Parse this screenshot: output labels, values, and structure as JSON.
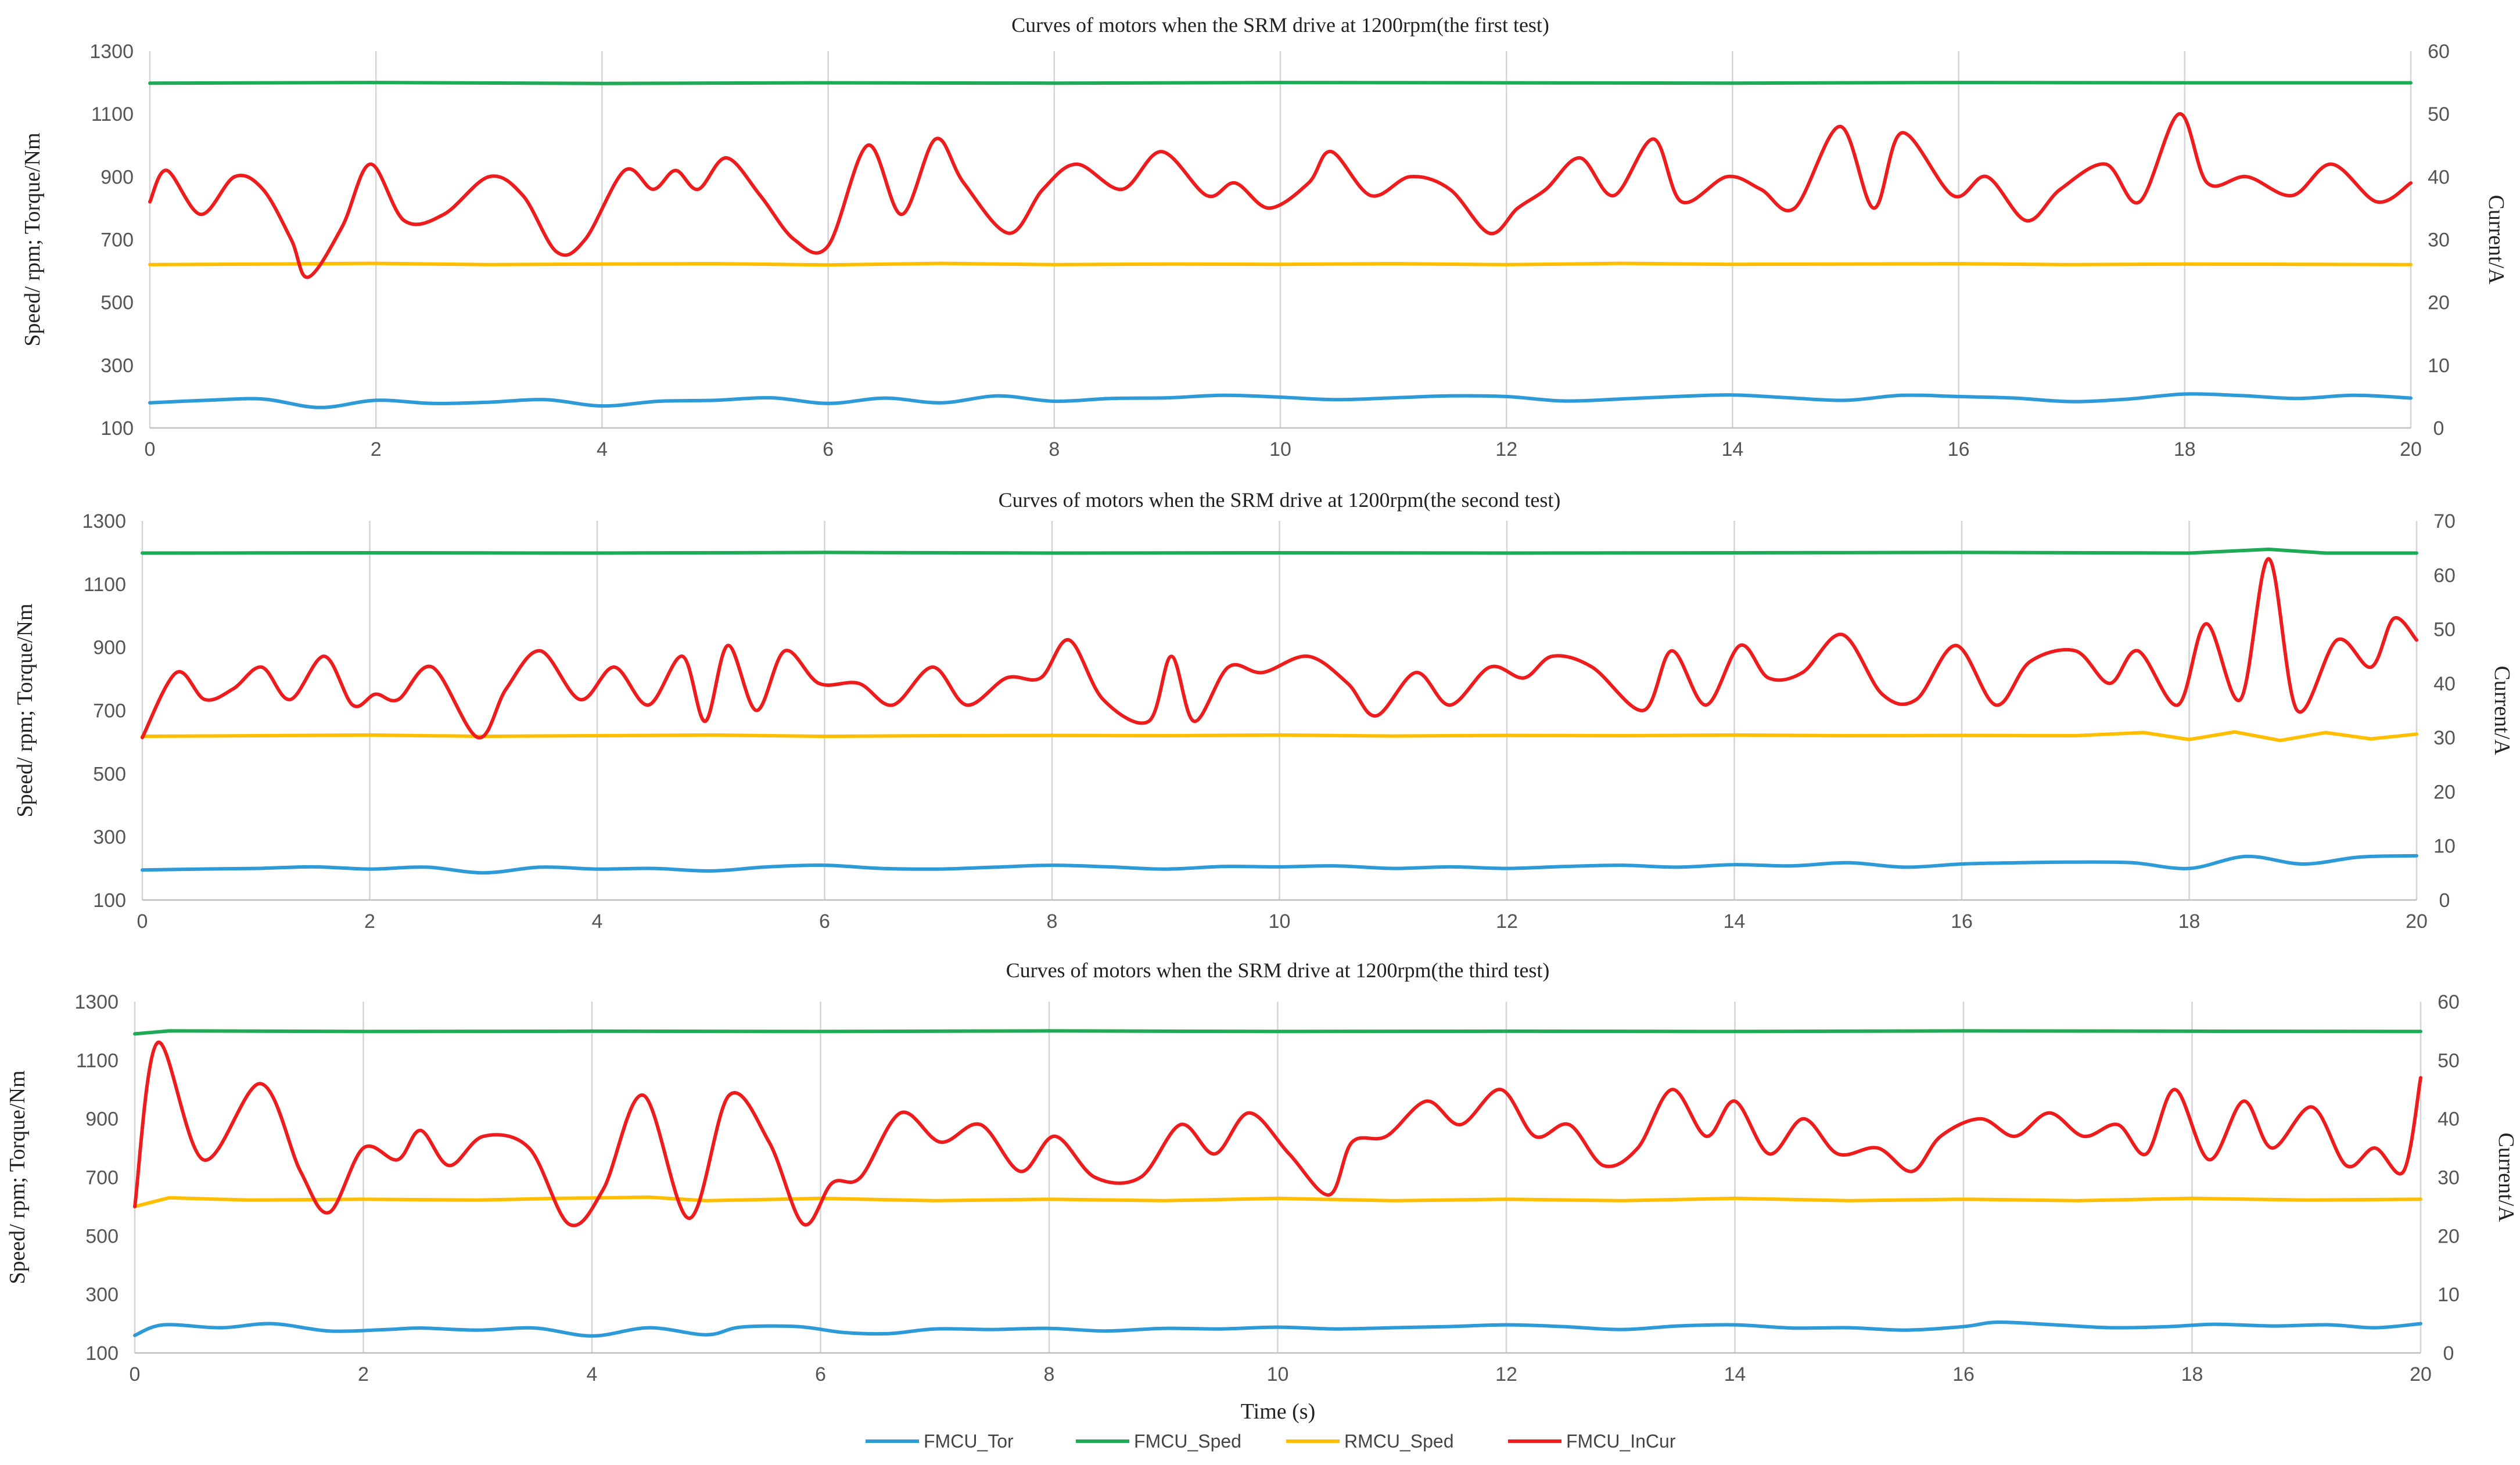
{
  "figure": {
    "xlabel": "Time (s)",
    "legend_position": "bottom"
  },
  "legend": [
    {
      "name": "FMCU_Tor",
      "color": "#2e9bd8"
    },
    {
      "name": "FMCU_Sped",
      "color": "#1faa55"
    },
    {
      "name": "RMCU_Sped",
      "color": "#ffbf00"
    },
    {
      "name": "FMCU_InCur",
      "color": "#ee1c1c"
    }
  ],
  "chart_data": [
    {
      "type": "line",
      "title": "Curves of motors when the SRM drive at 1200rpm(the first test)",
      "ylabel": "Speed/ rpm; Torque/Nm",
      "y2label": "Current/A",
      "xlim": [
        0,
        20
      ],
      "ylim": [
        100,
        1300
      ],
      "y2lim": [
        0,
        60
      ],
      "xticks": [
        "0",
        "2",
        "4",
        "6",
        "8",
        "10",
        "12",
        "14",
        "16",
        "18",
        "20"
      ],
      "yticks": [
        "100",
        "300",
        "500",
        "700",
        "900",
        "1100",
        "1300"
      ],
      "y2ticks": [
        "0",
        "10",
        "20",
        "30",
        "40",
        "50",
        "60"
      ],
      "grid": "vertical",
      "series": [
        {
          "name": "FMCU_Tor",
          "axis": "left",
          "color": "#2e9bd8",
          "x": [
            0,
            0.5,
            1,
            1.5,
            2,
            2.5,
            3,
            3.5,
            4,
            4.5,
            5,
            5.5,
            6,
            6.5,
            7,
            7.5,
            8,
            8.5,
            9,
            9.5,
            10,
            10.5,
            11,
            11.5,
            12,
            12.5,
            13,
            13.5,
            14,
            14.5,
            15,
            15.5,
            16,
            16.5,
            17,
            17.5,
            18,
            18.5,
            19,
            19.5,
            20
          ],
          "y": [
            180,
            188,
            192,
            165,
            188,
            178,
            182,
            190,
            170,
            185,
            188,
            196,
            178,
            195,
            180,
            202,
            185,
            194,
            196,
            204,
            198,
            190,
            196,
            202,
            200,
            186,
            192,
            200,
            205,
            196,
            188,
            204,
            200,
            195,
            184,
            192,
            208,
            203,
            194,
            204,
            195
          ]
        },
        {
          "name": "FMCU_Sped",
          "axis": "left",
          "color": "#1faa55",
          "x": [
            0,
            2,
            4,
            6,
            8,
            10,
            12,
            14,
            16,
            18,
            20
          ],
          "y": [
            1198,
            1200,
            1197,
            1199,
            1198,
            1200,
            1199,
            1198,
            1200,
            1199,
            1199
          ]
        },
        {
          "name": "RMCU_Sped",
          "axis": "left",
          "color": "#ffbf00",
          "x": [
            0,
            1,
            2,
            3,
            4,
            5,
            6,
            7,
            8,
            9,
            10,
            11,
            12,
            13,
            14,
            15,
            16,
            17,
            18,
            19,
            20
          ],
          "y": [
            620,
            622,
            624,
            620,
            622,
            623,
            619,
            624,
            620,
            622,
            621,
            623,
            620,
            624,
            621,
            622,
            623,
            620,
            622,
            621,
            620
          ]
        },
        {
          "name": "FMCU_InCur",
          "axis": "right",
          "color": "#ee1c1c",
          "x": [
            0,
            0.15,
            0.45,
            0.75,
            1,
            1.25,
            1.4,
            1.7,
            1.95,
            2.25,
            2.6,
            3,
            3.3,
            3.6,
            3.85,
            4.2,
            4.45,
            4.65,
            4.85,
            5.1,
            5.4,
            5.7,
            6,
            6.35,
            6.65,
            6.95,
            7.2,
            7.6,
            7.9,
            8.2,
            8.6,
            8.95,
            9.35,
            9.6,
            9.9,
            10.25,
            10.45,
            10.8,
            11.15,
            11.5,
            11.85,
            12.1,
            12.35,
            12.65,
            12.95,
            13.3,
            13.55,
            13.95,
            14.25,
            14.55,
            14.95,
            15.25,
            15.5,
            15.95,
            16.25,
            16.6,
            16.9,
            17.3,
            17.6,
            17.95,
            18.2,
            18.55,
            18.95,
            19.3,
            19.7,
            20
          ],
          "y": [
            36,
            41,
            34,
            40,
            38,
            30,
            24,
            32,
            42,
            33,
            34,
            40,
            37,
            28,
            30,
            41,
            38,
            41,
            38,
            43,
            37,
            30,
            29,
            45,
            34,
            46,
            39,
            31,
            38,
            42,
            38,
            44,
            37,
            39,
            35,
            39,
            44,
            37,
            40,
            38,
            31,
            35,
            38,
            43,
            37,
            46,
            36,
            40,
            38,
            35,
            48,
            35,
            47,
            37,
            40,
            33,
            38,
            42,
            36,
            50,
            39,
            40,
            37,
            42,
            36,
            39
          ]
        }
      ]
    },
    {
      "type": "line",
      "title": "Curves of motors when the SRM drive at 1200rpm(the second test)",
      "ylabel": "Speed/ rpm; Torque/Nm",
      "y2label": "Current/A",
      "xlim": [
        0,
        20
      ],
      "ylim": [
        100,
        1300
      ],
      "y2lim": [
        0,
        70
      ],
      "xticks": [
        "0",
        "2",
        "4",
        "6",
        "8",
        "10",
        "12",
        "14",
        "16",
        "18",
        "20"
      ],
      "yticks": [
        "100",
        "300",
        "500",
        "700",
        "900",
        "1100",
        "1300"
      ],
      "y2ticks": [
        "0",
        "10",
        "20",
        "30",
        "40",
        "50",
        "60",
        "70"
      ],
      "grid": "vertical",
      "series": [
        {
          "name": "FMCU_Tor",
          "axis": "left",
          "color": "#2e9bd8",
          "x": [
            0,
            0.5,
            1,
            1.5,
            2,
            2.5,
            3,
            3.5,
            4,
            4.5,
            5,
            5.5,
            6,
            6.5,
            7,
            7.5,
            8,
            8.5,
            9,
            9.5,
            10,
            10.5,
            11,
            11.5,
            12,
            12.5,
            13,
            13.5,
            14,
            14.5,
            15,
            15.5,
            16,
            16.5,
            17,
            17.5,
            18,
            18.5,
            19,
            19.5,
            20
          ],
          "y": [
            195,
            198,
            200,
            205,
            198,
            204,
            186,
            204,
            198,
            200,
            192,
            205,
            210,
            200,
            198,
            204,
            210,
            205,
            198,
            206,
            205,
            208,
            200,
            205,
            200,
            206,
            210,
            204,
            212,
            208,
            218,
            204,
            214,
            218,
            220,
            218,
            200,
            238,
            214,
            236,
            240
          ]
        },
        {
          "name": "FMCU_Sped",
          "axis": "left",
          "color": "#1faa55",
          "x": [
            0,
            2,
            4,
            6,
            8,
            10,
            12,
            14,
            16,
            18,
            18.7,
            19.2,
            20
          ],
          "y": [
            1198,
            1199,
            1198,
            1200,
            1198,
            1199,
            1198,
            1199,
            1200,
            1198,
            1210,
            1198,
            1198
          ]
        },
        {
          "name": "RMCU_Sped",
          "axis": "left",
          "color": "#ffbf00",
          "x": [
            0,
            1,
            2,
            3,
            4,
            5,
            6,
            7,
            8,
            9,
            10,
            11,
            12,
            13,
            14,
            15,
            16,
            17,
            17.6,
            18,
            18.4,
            18.8,
            19.2,
            19.6,
            20
          ],
          "y": [
            618,
            620,
            622,
            618,
            620,
            622,
            618,
            620,
            621,
            620,
            622,
            619,
            621,
            620,
            622,
            620,
            621,
            620,
            630,
            608,
            632,
            605,
            630,
            610,
            625
          ]
        },
        {
          "name": "FMCU_InCur",
          "axis": "right",
          "color": "#ee1c1c",
          "x": [
            0,
            0.3,
            0.55,
            0.8,
            1.05,
            1.3,
            1.6,
            1.85,
            2.05,
            2.25,
            2.55,
            2.95,
            3.2,
            3.5,
            3.85,
            4.15,
            4.45,
            4.75,
            4.95,
            5.15,
            5.4,
            5.65,
            5.95,
            6.3,
            6.6,
            6.95,
            7.25,
            7.6,
            7.9,
            8.15,
            8.45,
            8.85,
            9.05,
            9.25,
            9.55,
            9.85,
            10.25,
            10.6,
            10.85,
            11.2,
            11.5,
            11.85,
            12.15,
            12.4,
            12.75,
            13.2,
            13.45,
            13.75,
            14.05,
            14.3,
            14.6,
            14.95,
            15.3,
            15.6,
            15.95,
            16.3,
            16.6,
            17,
            17.3,
            17.55,
            17.9,
            18.15,
            18.45,
            18.7,
            18.95,
            19.3,
            19.6,
            19.8,
            20
          ],
          "y": [
            30,
            42,
            37,
            39,
            43,
            37,
            45,
            36,
            38,
            37,
            43,
            30,
            39,
            46,
            37,
            43,
            36,
            45,
            33,
            47,
            35,
            46,
            40,
            40,
            36,
            43,
            36,
            41,
            41,
            48,
            37,
            33,
            45,
            33,
            43,
            42,
            45,
            40,
            34,
            42,
            36,
            43,
            41,
            45,
            43,
            35,
            46,
            36,
            47,
            41,
            42,
            49,
            38,
            37,
            47,
            36,
            44,
            46,
            40,
            46,
            36,
            51,
            37,
            63,
            35,
            48,
            43,
            52,
            48
          ]
        }
      ]
    },
    {
      "type": "line",
      "title": "Curves of motors when the SRM drive at 1200rpm(the third test)",
      "ylabel": "Speed/ rpm; Torque/Nm",
      "y2label": "Current/A",
      "xlim": [
        0,
        20
      ],
      "ylim": [
        100,
        1300
      ],
      "y2lim": [
        0,
        60
      ],
      "xticks": [
        "0",
        "2",
        "4",
        "6",
        "8",
        "10",
        "12",
        "14",
        "16",
        "18",
        "20"
      ],
      "yticks": [
        "100",
        "300",
        "500",
        "700",
        "900",
        "1100",
        "1300"
      ],
      "y2ticks": [
        "0",
        "10",
        "20",
        "30",
        "40",
        "50",
        "60"
      ],
      "grid": "vertical",
      "series": [
        {
          "name": "FMCU_Tor",
          "axis": "left",
          "color": "#2e9bd8",
          "x": [
            0,
            0.25,
            0.75,
            1.2,
            1.7,
            2.2,
            2.5,
            3,
            3.5,
            4,
            4.5,
            5,
            5.3,
            5.8,
            6.2,
            6.6,
            7,
            7.5,
            8,
            8.5,
            9,
            9.5,
            10,
            10.5,
            11,
            11.5,
            12,
            12.5,
            13,
            13.5,
            14,
            14.5,
            15,
            15.5,
            16,
            16.3,
            16.8,
            17.3,
            17.8,
            18.2,
            18.7,
            19.2,
            19.6,
            20
          ],
          "y": [
            160,
            196,
            186,
            200,
            175,
            180,
            185,
            178,
            185,
            158,
            186,
            162,
            188,
            190,
            170,
            166,
            182,
            180,
            184,
            175,
            184,
            182,
            188,
            182,
            186,
            190,
            196,
            190,
            180,
            192,
            196,
            185,
            186,
            178,
            190,
            205,
            196,
            186,
            190,
            198,
            192,
            196,
            186,
            200
          ]
        },
        {
          "name": "FMCU_Sped",
          "axis": "left",
          "color": "#1faa55",
          "x": [
            0,
            0.3,
            2,
            4,
            6,
            8,
            10,
            12,
            14,
            16,
            18,
            20
          ],
          "y": [
            1190,
            1200,
            1198,
            1199,
            1198,
            1200,
            1198,
            1199,
            1198,
            1200,
            1199,
            1198
          ]
        },
        {
          "name": "RMCU_Sped",
          "axis": "left",
          "color": "#ffbf00",
          "x": [
            0,
            0.3,
            1,
            2,
            3,
            3.7,
            4.5,
            5,
            6,
            7,
            8,
            9,
            10,
            11,
            12,
            13,
            14,
            15,
            16,
            17,
            18,
            19,
            20
          ],
          "y": [
            600,
            630,
            622,
            625,
            622,
            628,
            632,
            620,
            628,
            620,
            625,
            620,
            628,
            620,
            625,
            620,
            628,
            620,
            625,
            620,
            628,
            622,
            625
          ]
        },
        {
          "name": "FMCU_InCur",
          "axis": "right",
          "color": "#ee1c1c",
          "x": [
            0,
            0.2,
            0.6,
            1.1,
            1.45,
            1.7,
            2,
            2.3,
            2.5,
            2.75,
            3.05,
            3.45,
            3.8,
            4.1,
            4.45,
            4.85,
            5.2,
            5.55,
            5.85,
            6.1,
            6.35,
            6.7,
            7.05,
            7.4,
            7.75,
            8.05,
            8.4,
            8.8,
            9.15,
            9.45,
            9.75,
            10.1,
            10.45,
            10.65,
            10.95,
            11.3,
            11.6,
            11.95,
            12.25,
            12.55,
            12.85,
            13.15,
            13.45,
            13.75,
            14,
            14.3,
            14.6,
            14.9,
            15.25,
            15.55,
            15.8,
            16.15,
            16.45,
            16.75,
            17.05,
            17.35,
            17.6,
            17.85,
            18.15,
            18.45,
            18.7,
            19.05,
            19.35,
            19.6,
            19.85,
            20
          ],
          "y": [
            25,
            53,
            33,
            46,
            31,
            24,
            35,
            33,
            38,
            32,
            37,
            35,
            22,
            28,
            44,
            23,
            44,
            36,
            22,
            29,
            30,
            41,
            36,
            39,
            31,
            37,
            30,
            30,
            39,
            34,
            41,
            34,
            27,
            36,
            37,
            43,
            39,
            45,
            37,
            39,
            32,
            35,
            45,
            37,
            43,
            34,
            40,
            34,
            35,
            31,
            37,
            40,
            37,
            41,
            37,
            39,
            34,
            45,
            33,
            43,
            35,
            42,
            32,
            35,
            31,
            47
          ]
        }
      ]
    }
  ]
}
